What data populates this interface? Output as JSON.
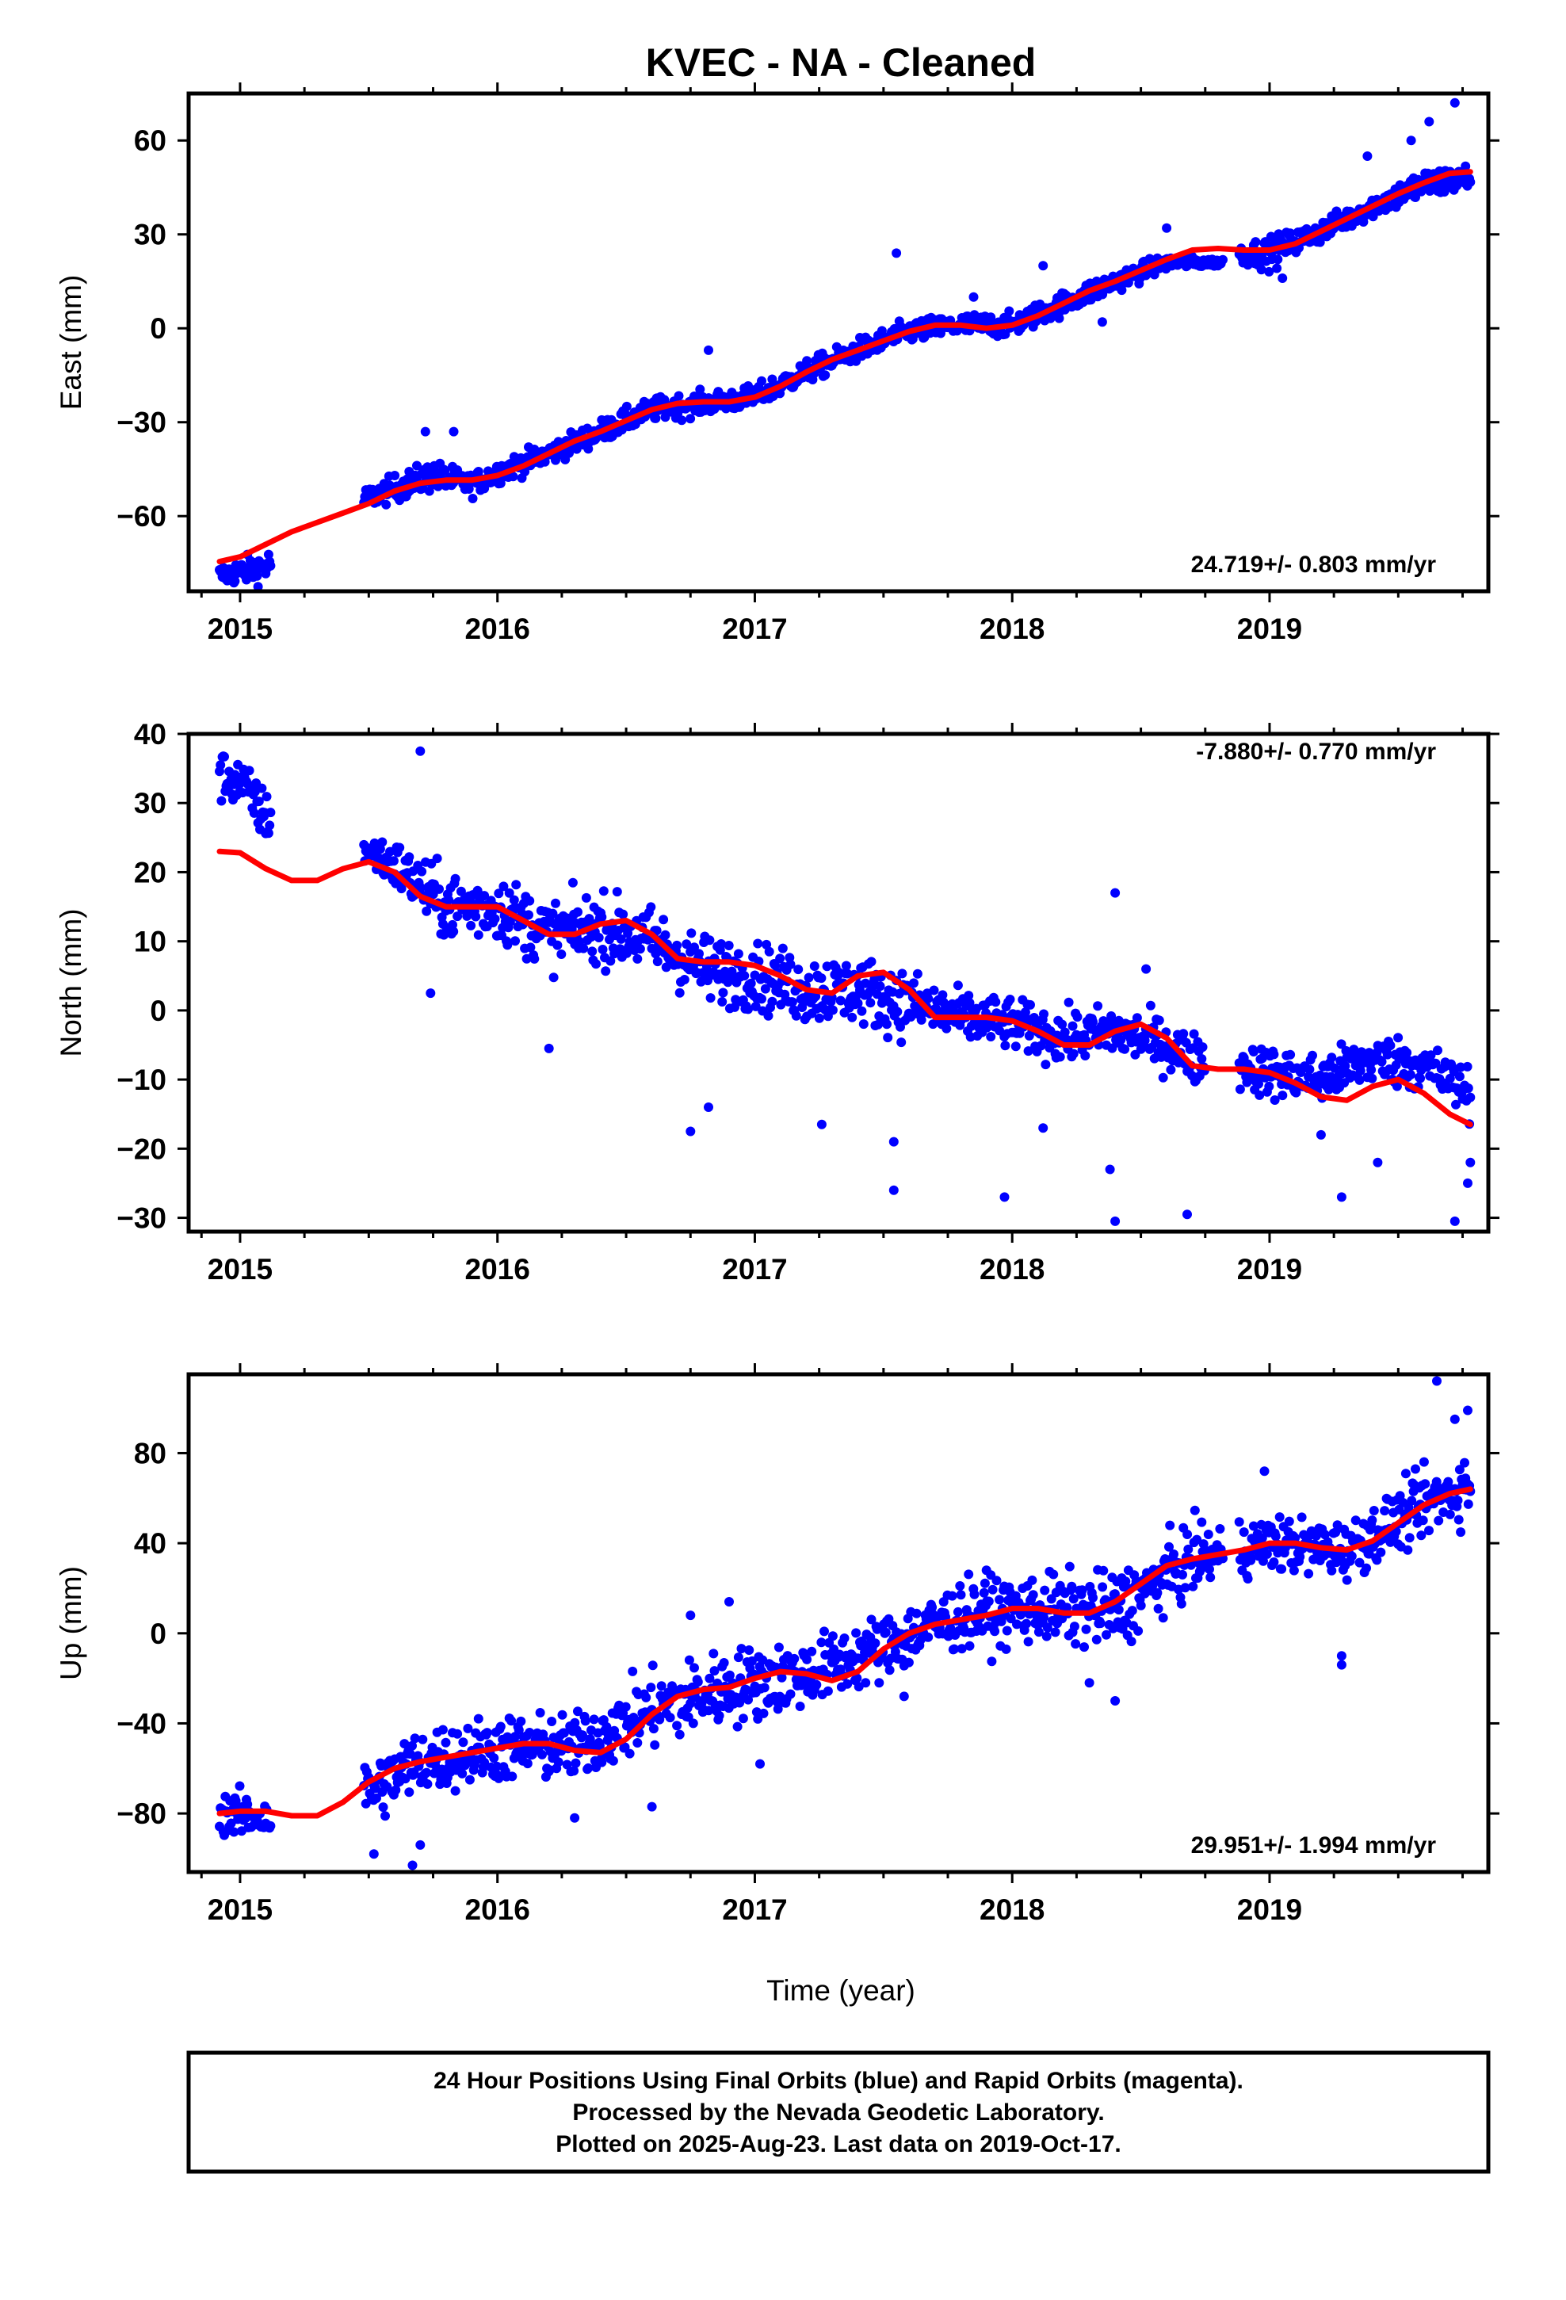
{
  "title": "KVEC  - NA - Cleaned",
  "xlabel": "Time (year)",
  "footer": {
    "line1": "24 Hour Positions Using Final Orbits (blue) and Rapid Orbits (magenta).",
    "line2": "Processed by the Nevada Geodetic Laboratory.",
    "line3": "Plotted on 2025-Aug-23. Last data on 2019-Oct-17."
  },
  "colors": {
    "data": "#0000ff",
    "fit": "#ff0000",
    "frame": "#000000"
  },
  "chart_data": [
    {
      "type": "scatter",
      "name": "east",
      "ylabel": "East (mm)",
      "rate": "24.719+/- 0.803 mm/yr",
      "xlim": [
        2014.8,
        2019.85
      ],
      "ylim": [
        -84,
        75
      ],
      "yticks": [
        -60,
        -30,
        0,
        30,
        60
      ],
      "xticks": [
        2015,
        2016,
        2017,
        2018,
        2019
      ],
      "fit": [
        [
          2014.92,
          -74.5
        ],
        [
          2015.0,
          -73
        ],
        [
          2015.1,
          -69
        ],
        [
          2015.2,
          -65
        ],
        [
          2015.3,
          -62
        ],
        [
          2015.4,
          -59
        ],
        [
          2015.5,
          -56
        ],
        [
          2015.6,
          -52
        ],
        [
          2015.7,
          -49.5
        ],
        [
          2015.8,
          -48.5
        ],
        [
          2015.9,
          -48.5
        ],
        [
          2016.0,
          -47
        ],
        [
          2016.1,
          -44
        ],
        [
          2016.2,
          -40
        ],
        [
          2016.3,
          -36
        ],
        [
          2016.4,
          -33
        ],
        [
          2016.5,
          -29.5
        ],
        [
          2016.6,
          -26
        ],
        [
          2016.7,
          -24
        ],
        [
          2016.8,
          -23.5
        ],
        [
          2016.9,
          -23.5
        ],
        [
          2017.0,
          -22
        ],
        [
          2017.1,
          -18.5
        ],
        [
          2017.2,
          -14
        ],
        [
          2017.3,
          -10
        ],
        [
          2017.4,
          -7
        ],
        [
          2017.5,
          -4
        ],
        [
          2017.6,
          -1
        ],
        [
          2017.7,
          1
        ],
        [
          2017.8,
          1
        ],
        [
          2017.9,
          0
        ],
        [
          2018.0,
          1
        ],
        [
          2018.1,
          4
        ],
        [
          2018.2,
          8
        ],
        [
          2018.3,
          12
        ],
        [
          2018.4,
          15
        ],
        [
          2018.5,
          18.5
        ],
        [
          2018.6,
          22
        ],
        [
          2018.7,
          25
        ],
        [
          2018.8,
          25.5
        ],
        [
          2018.9,
          25
        ],
        [
          2019.0,
          25
        ],
        [
          2019.1,
          27
        ],
        [
          2019.2,
          31
        ],
        [
          2019.3,
          35
        ],
        [
          2019.4,
          39
        ],
        [
          2019.5,
          43
        ],
        [
          2019.6,
          46.5
        ],
        [
          2019.7,
          49.5
        ],
        [
          2019.78,
          50
        ]
      ],
      "scatter_envelope": [
        [
          2014.92,
          -79,
          3
        ],
        [
          2015.1,
          -76,
          4
        ],
        [
          2015.5,
          -54,
          3
        ],
        [
          2015.75,
          -47,
          4
        ],
        [
          2015.9,
          -50,
          3
        ],
        [
          2016.0,
          -46,
          3
        ],
        [
          2016.2,
          -40,
          3
        ],
        [
          2016.4,
          -33,
          3
        ],
        [
          2016.6,
          -26,
          3
        ],
        [
          2016.8,
          -24,
          3
        ],
        [
          2017.0,
          -22,
          3
        ],
        [
          2017.2,
          -14,
          3
        ],
        [
          2017.4,
          -7,
          3
        ],
        [
          2017.6,
          -1,
          3
        ],
        [
          2017.8,
          1,
          3
        ],
        [
          2018.0,
          1,
          3
        ],
        [
          2018.2,
          8,
          3
        ],
        [
          2018.4,
          15,
          3
        ],
        [
          2018.6,
          21,
          2
        ],
        [
          2018.8,
          21,
          1
        ],
        [
          2018.9,
          24,
          3
        ],
        [
          2019.0,
          24,
          4
        ],
        [
          2019.2,
          31,
          3
        ],
        [
          2019.4,
          39,
          3
        ],
        [
          2019.6,
          46,
          4
        ],
        [
          2019.78,
          48,
          4
        ]
      ],
      "gaps": [
        [
          2015.12,
          2015.48
        ],
        [
          2018.82,
          2018.88
        ]
      ],
      "outliers": [
        [
          2015.72,
          -33
        ],
        [
          2015.83,
          -33
        ],
        [
          2016.82,
          -7
        ],
        [
          2017.55,
          24
        ],
        [
          2017.85,
          10
        ],
        [
          2018.12,
          20
        ],
        [
          2018.35,
          2
        ],
        [
          2018.6,
          32
        ],
        [
          2019.05,
          16
        ],
        [
          2019.38,
          55
        ],
        [
          2019.55,
          60
        ],
        [
          2019.62,
          66
        ],
        [
          2019.72,
          72
        ]
      ]
    },
    {
      "type": "scatter",
      "name": "north",
      "ylabel": "North (mm)",
      "rate": "-7.880+/- 0.770 mm/yr",
      "xlim": [
        2014.8,
        2019.85
      ],
      "ylim": [
        -32,
        40
      ],
      "yticks": [
        -30,
        -20,
        -10,
        0,
        10,
        20,
        30,
        40
      ],
      "xticks": [
        2015,
        2016,
        2017,
        2018,
        2019
      ],
      "fit": [
        [
          2014.92,
          23
        ],
        [
          2015.0,
          22.8
        ],
        [
          2015.1,
          20.5
        ],
        [
          2015.2,
          18.8
        ],
        [
          2015.3,
          18.8
        ],
        [
          2015.4,
          20.5
        ],
        [
          2015.5,
          21.5
        ],
        [
          2015.6,
          20
        ],
        [
          2015.7,
          16.5
        ],
        [
          2015.8,
          15
        ],
        [
          2015.9,
          15
        ],
        [
          2016.0,
          15
        ],
        [
          2016.1,
          13
        ],
        [
          2016.2,
          11
        ],
        [
          2016.3,
          11
        ],
        [
          2016.4,
          12.5
        ],
        [
          2016.5,
          13
        ],
        [
          2016.6,
          11
        ],
        [
          2016.7,
          7.5
        ],
        [
          2016.8,
          7
        ],
        [
          2016.9,
          7
        ],
        [
          2017.0,
          6.5
        ],
        [
          2017.1,
          5
        ],
        [
          2017.2,
          3
        ],
        [
          2017.3,
          2.5
        ],
        [
          2017.4,
          5
        ],
        [
          2017.5,
          5.5
        ],
        [
          2017.6,
          3
        ],
        [
          2017.7,
          -1
        ],
        [
          2017.8,
          -1
        ],
        [
          2017.9,
          -1
        ],
        [
          2018.0,
          -1.5
        ],
        [
          2018.1,
          -3
        ],
        [
          2018.2,
          -5
        ],
        [
          2018.3,
          -5
        ],
        [
          2018.4,
          -3
        ],
        [
          2018.5,
          -2
        ],
        [
          2018.6,
          -4
        ],
        [
          2018.7,
          -8
        ],
        [
          2018.8,
          -8.5
        ],
        [
          2018.9,
          -8.5
        ],
        [
          2019.0,
          -9
        ],
        [
          2019.1,
          -10.5
        ],
        [
          2019.2,
          -12.5
        ],
        [
          2019.3,
          -13
        ],
        [
          2019.4,
          -11
        ],
        [
          2019.5,
          -10
        ],
        [
          2019.6,
          -12
        ],
        [
          2019.7,
          -15
        ],
        [
          2019.78,
          -16.5
        ]
      ],
      "scatter_envelope": [
        [
          2014.92,
          34,
          3
        ],
        [
          2015.0,
          33,
          3
        ],
        [
          2015.1,
          28,
          3
        ],
        [
          2015.5,
          23,
          2
        ],
        [
          2015.6,
          21,
          3
        ],
        [
          2015.8,
          15,
          4
        ],
        [
          2016.0,
          15,
          4
        ],
        [
          2016.2,
          11,
          4
        ],
        [
          2016.4,
          12,
          4
        ],
        [
          2016.6,
          10,
          4
        ],
        [
          2016.8,
          6,
          4
        ],
        [
          2017.0,
          5,
          4
        ],
        [
          2017.2,
          3,
          4
        ],
        [
          2017.4,
          3,
          4
        ],
        [
          2017.6,
          1,
          4
        ],
        [
          2017.8,
          -1,
          3
        ],
        [
          2018.0,
          -2,
          3
        ],
        [
          2018.2,
          -4,
          3
        ],
        [
          2018.4,
          -3,
          3
        ],
        [
          2018.6,
          -5,
          3
        ],
        [
          2018.7,
          -7,
          3
        ],
        [
          2018.9,
          -8,
          3
        ],
        [
          2019.0,
          -9,
          3
        ],
        [
          2019.2,
          -10,
          3
        ],
        [
          2019.4,
          -7,
          3
        ],
        [
          2019.6,
          -8,
          3
        ],
        [
          2019.78,
          -12,
          3
        ]
      ],
      "gaps": [
        [
          2015.12,
          2015.48
        ],
        [
          2018.75,
          2018.88
        ]
      ],
      "outliers": [
        [
          2015.7,
          37.5
        ],
        [
          2015.74,
          2.5
        ],
        [
          2016.2,
          -5.5
        ],
        [
          2016.75,
          -17.5
        ],
        [
          2016.82,
          -14
        ],
        [
          2017.26,
          -16.5
        ],
        [
          2017.54,
          -26
        ],
        [
          2017.54,
          -19
        ],
        [
          2017.97,
          -27
        ],
        [
          2018.12,
          -17
        ],
        [
          2018.38,
          -23
        ],
        [
          2018.4,
          17
        ],
        [
          2018.52,
          6
        ],
        [
          2018.68,
          -29.5
        ],
        [
          2018.4,
          -30.5
        ],
        [
          2019.2,
          -18
        ],
        [
          2019.28,
          -27
        ],
        [
          2019.42,
          -22
        ],
        [
          2019.72,
          -30.5
        ],
        [
          2019.77,
          -25
        ],
        [
          2019.78,
          -22
        ]
      ]
    },
    {
      "type": "scatter",
      "name": "up",
      "ylabel": "Up (mm)",
      "rate": "29.951+/- 1.994 mm/yr",
      "xlim": [
        2014.8,
        2019.85
      ],
      "ylim": [
        -106,
        115
      ],
      "yticks": [
        -80,
        -40,
        0,
        40,
        80
      ],
      "xticks": [
        2015,
        2016,
        2017,
        2018,
        2019
      ],
      "fit": [
        [
          2014.92,
          -80
        ],
        [
          2015.0,
          -79
        ],
        [
          2015.1,
          -79
        ],
        [
          2015.2,
          -81
        ],
        [
          2015.3,
          -81
        ],
        [
          2015.4,
          -75
        ],
        [
          2015.5,
          -66
        ],
        [
          2015.6,
          -60
        ],
        [
          2015.7,
          -57
        ],
        [
          2015.8,
          -55
        ],
        [
          2015.9,
          -53
        ],
        [
          2016.0,
          -51
        ],
        [
          2016.1,
          -49
        ],
        [
          2016.2,
          -49
        ],
        [
          2016.3,
          -52
        ],
        [
          2016.4,
          -53
        ],
        [
          2016.5,
          -47
        ],
        [
          2016.6,
          -36
        ],
        [
          2016.7,
          -28
        ],
        [
          2016.8,
          -25
        ],
        [
          2016.9,
          -24
        ],
        [
          2017.0,
          -20
        ],
        [
          2017.1,
          -17
        ],
        [
          2017.2,
          -18
        ],
        [
          2017.3,
          -21
        ],
        [
          2017.4,
          -17
        ],
        [
          2017.5,
          -7
        ],
        [
          2017.6,
          0
        ],
        [
          2017.7,
          4
        ],
        [
          2017.8,
          6
        ],
        [
          2017.9,
          8
        ],
        [
          2018.0,
          11
        ],
        [
          2018.1,
          11
        ],
        [
          2018.2,
          9
        ],
        [
          2018.3,
          9
        ],
        [
          2018.4,
          14
        ],
        [
          2018.5,
          22
        ],
        [
          2018.6,
          30
        ],
        [
          2018.7,
          33
        ],
        [
          2018.8,
          35
        ],
        [
          2018.9,
          37
        ],
        [
          2019.0,
          40
        ],
        [
          2019.1,
          40
        ],
        [
          2019.2,
          38
        ],
        [
          2019.3,
          37
        ],
        [
          2019.4,
          41
        ],
        [
          2019.5,
          49
        ],
        [
          2019.6,
          57
        ],
        [
          2019.7,
          62
        ],
        [
          2019.78,
          64
        ]
      ],
      "scatter_envelope": [
        [
          2014.92,
          -80,
          8
        ],
        [
          2015.1,
          -82,
          8
        ],
        [
          2015.5,
          -70,
          12
        ],
        [
          2015.7,
          -57,
          12
        ],
        [
          2016.0,
          -51,
          12
        ],
        [
          2016.3,
          -51,
          12
        ],
        [
          2016.6,
          -34,
          14
        ],
        [
          2016.9,
          -24,
          14
        ],
        [
          2017.2,
          -18,
          12
        ],
        [
          2017.5,
          -6,
          12
        ],
        [
          2017.8,
          8,
          12
        ],
        [
          2018.1,
          11,
          12
        ],
        [
          2018.4,
          10,
          14
        ],
        [
          2018.7,
          33,
          12
        ],
        [
          2019.0,
          40,
          10
        ],
        [
          2019.3,
          37,
          10
        ],
        [
          2019.6,
          57,
          12
        ],
        [
          2019.78,
          66,
          12
        ]
      ],
      "gaps": [
        [
          2015.12,
          2015.48
        ],
        [
          2018.82,
          2018.88
        ]
      ],
      "outliers": [
        [
          2015.52,
          -98
        ],
        [
          2015.67,
          -103
        ],
        [
          2015.7,
          -94
        ],
        [
          2016.3,
          -82
        ],
        [
          2016.6,
          -77
        ],
        [
          2016.75,
          8
        ],
        [
          2016.9,
          14
        ],
        [
          2017.02,
          -58
        ],
        [
          2017.58,
          -28
        ],
        [
          2017.9,
          28
        ],
        [
          2018.3,
          -22
        ],
        [
          2018.4,
          -30
        ],
        [
          2018.98,
          72
        ],
        [
          2019.28,
          -10
        ],
        [
          2019.28,
          -14
        ],
        [
          2019.65,
          112
        ],
        [
          2019.72,
          95
        ],
        [
          2019.77,
          99
        ]
      ]
    }
  ]
}
